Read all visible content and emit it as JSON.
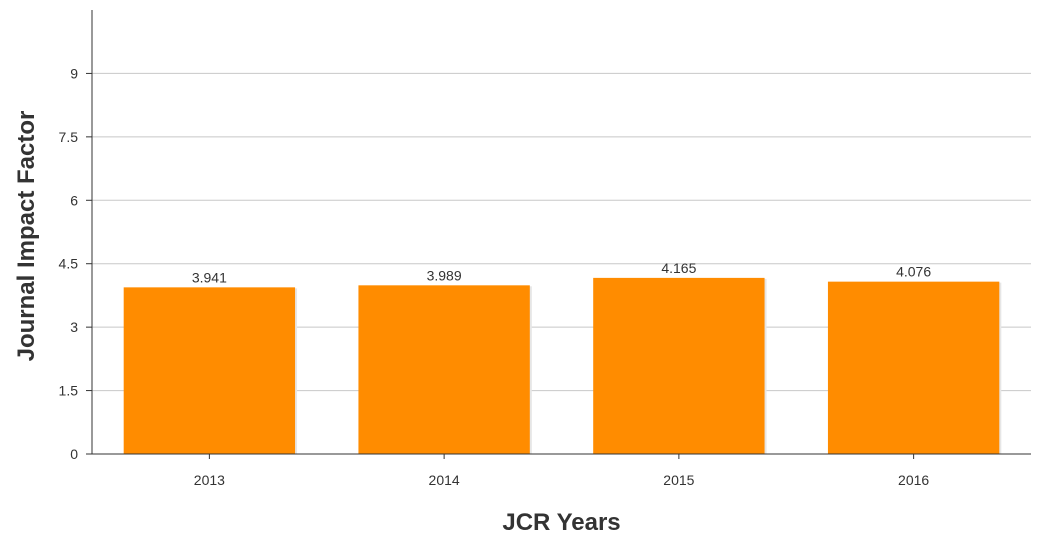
{
  "chart_data": {
    "type": "bar",
    "categories": [
      "2013",
      "2014",
      "2015",
      "2016"
    ],
    "values": [
      3.941,
      3.989,
      4.165,
      4.076
    ],
    "value_labels": [
      "3.941",
      "3.989",
      "4.165",
      "4.076"
    ],
    "xlabel": "JCR Years",
    "ylabel": "Journal Impact Factor",
    "ylim": [
      0,
      10.5
    ],
    "yticks": [
      0,
      1.5,
      3,
      4.5,
      6,
      7.5,
      9
    ],
    "ytick_labels": [
      "0",
      "1.5",
      "3",
      "4.5",
      "6",
      "7.5",
      "9"
    ],
    "grid": "horizontal",
    "bar_color": "#ff8c00",
    "legend": "none"
  }
}
